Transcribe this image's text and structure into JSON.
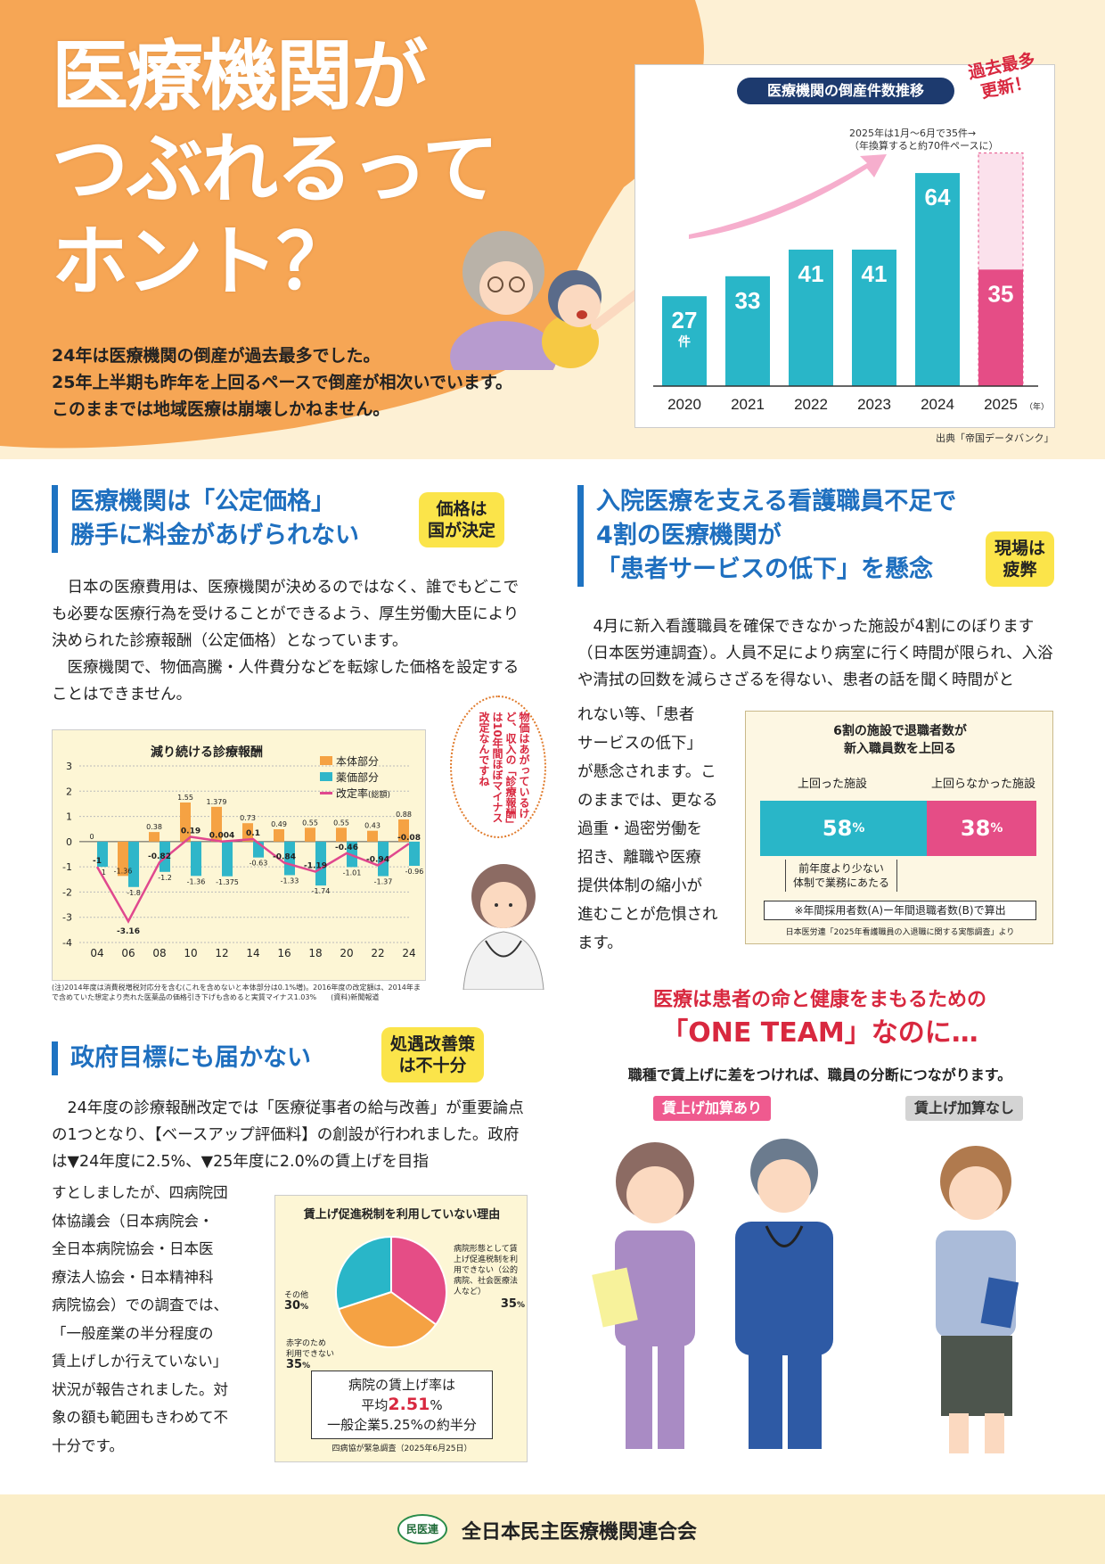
{
  "hero": {
    "title_lines": [
      "医療機関が",
      "つぶれるって",
      "ホント？"
    ],
    "lead_lines": [
      "24年は医療機関の倒産が過去最多でした。",
      "25年上半期も昨年を上回るペースで倒産が相次いでいます。",
      "このままでは地域医療は崩壊しかねません。"
    ]
  },
  "bankruptcy_chart": {
    "title": "医療機関の倒産件数推移",
    "badge_line1": "過去最多",
    "badge_line2": "更新！",
    "note_line1": "2025年は1月〜6月で35件→",
    "note_line2": "（年換算すると約70件ペースに）",
    "unit_label": "件",
    "year_suffix": "（年）",
    "source": "出典「帝国データバンク」",
    "colors": {
      "bar": "#29b6c8",
      "bar_2025": "#e54d86",
      "projection": "#fbe1ec"
    }
  },
  "chart_data": [
    {
      "type": "bar",
      "title": "医療機関の倒産件数推移",
      "categories": [
        "2020",
        "2021",
        "2022",
        "2023",
        "2024",
        "2025"
      ],
      "values": [
        27,
        33,
        41,
        41,
        64,
        35
      ],
      "projection_2025": 70,
      "ylim": [
        0,
        75
      ]
    },
    {
      "type": "bar",
      "title": "減り続ける診療報酬",
      "categories": [
        "04",
        "06",
        "08",
        "10",
        "12",
        "14",
        "16",
        "18",
        "20",
        "22",
        "24"
      ],
      "series": [
        {
          "name": "本体部分",
          "values": [
            0.0,
            -1.36,
            0.38,
            1.55,
            1.379,
            0.73,
            0.49,
            0.55,
            0.55,
            0.43,
            0.88
          ]
        },
        {
          "name": "薬価部分",
          "values": [
            -1.0,
            -1.8,
            -1.2,
            -1.36,
            -1.375,
            -0.63,
            -1.33,
            -1.74,
            -1.01,
            -1.37,
            -0.96
          ]
        },
        {
          "name": "改定率(総額)",
          "values": [
            -1.0,
            -3.16,
            -0.82,
            0.19,
            0.004,
            0.1,
            -0.84,
            -1.19,
            -0.46,
            -0.94,
            -0.08
          ]
        }
      ],
      "ylim": [
        -4,
        3
      ]
    },
    {
      "type": "pie",
      "title": "賃上げ促進税制を利用していない理由",
      "labels": [
        "病院形態として賃上げ促進税制を利用できない（公的病院、社会医療法人など）",
        "赤字のため利用できない",
        "その他"
      ],
      "values": [
        35,
        35,
        30
      ]
    }
  ],
  "sec1": {
    "heading_line1": "医療機関は「公定価格」",
    "heading_line2": "勝手に料金があげられない",
    "tag_line1": "価格は",
    "tag_line2": "国が決定",
    "para1": "日本の医療費用は、医療機関が決めるのではなく、誰でもどこでも必要な医療行為を受けることができるよう、厚生労働大臣により決められた診療報酬（公定価格）となっています。",
    "para2": "医療機関で、物価高騰・人件費分などを転嫁した価格を設定することはできません。"
  },
  "fee_chart": {
    "title": "減り続ける診療報酬",
    "legend": [
      "本体部分",
      "薬価部分",
      "改定率"
    ],
    "legend_suffix": "(総額)",
    "y_ticks": [
      "3",
      "2",
      "1",
      "0",
      "-1",
      "-2",
      "-3",
      "-4"
    ],
    "x_ticks": [
      "04",
      "06",
      "08",
      "10",
      "12",
      "14",
      "16",
      "18",
      "20",
      "22",
      "24"
    ],
    "note": "(注)2014年度は消費税増税対応分を含む(これを含めないと本体部分は0.1%増)。2016年度の改定額は、2014年まで含めていた想定より売れた医薬品の価格引き下げも含めると実質マイナス1.03%　　(資料)新聞報道",
    "colors": {
      "main": "#f5a243",
      "drug": "#2fb6c9",
      "total": "#e0488e"
    }
  },
  "speech": {
    "text": "物価はあがっているけど、収入の「診療報酬」は10年間ほぼマイナス改定なんですね"
  },
  "sec2": {
    "heading_line1": "入院医療を支える看護職員不足で",
    "heading_line2": "4割の医療機関が",
    "heading_line3": "「患者サービスの低下」を懸念",
    "tag_line1": "現場は",
    "tag_line2": "疲弊",
    "para_full": "4月に新入看護職員を確保できなかった施設が4割にのぼります（日本医労連調査）。人員不足により病室に行く時間が限られ、入浴や清拭の回数を減らさざるを得ない、患者の話を聞く時間がと",
    "para_narrow": [
      "れない等、「患者",
      "サービスの低下」",
      "が懸念されます。こ",
      "のままでは、更なる",
      "過重・過密労働を",
      "招き、離職や医療",
      "提供体制の縮小が",
      "進むことが危惧され",
      "ます。"
    ]
  },
  "nurse_chart": {
    "title_line1": "6割の施設で退職者数が",
    "title_line2": "新入職員数を上回る",
    "label_over": "上回った施設",
    "label_not": "上回らなかった施設",
    "value_over": "58",
    "value_not": "38",
    "pct": "%",
    "brace_line1": "前年度より少ない",
    "brace_line2": "体制で業務にあたる",
    "note": "※年間採用者数(A)ー年間退職者数(B)で算出",
    "source": "日本医労連「2025年看護職員の入退職に関する実態調査」より",
    "colors": {
      "over": "#29b6c8",
      "not": "#e54d86"
    }
  },
  "sec3": {
    "heading": "政府目標にも届かない",
    "tag_line1": "処遇改善策",
    "tag_line2": "は不十分",
    "para_full": "24年度の診療報酬改定では「医療従事者の給与改善」が重要論点の1つとなり、【ベースアップ評価料】の創設が行われました。政府は▼24年度に2.5%、▼25年度に2.0%の賃上げを目指",
    "para_narrow": [
      "すとしましたが、四病院団",
      "体協議会（日本病院会・",
      "全日本病院協会・日本医",
      "療法人協会・日本精神科",
      "病院協会）での調査では、",
      "「一般産業の半分程度の",
      "賃上げしか行えていない」",
      "状況が報告されました。対",
      "象の額も範囲もきわめて不",
      "十分です。"
    ]
  },
  "pie": {
    "title": "賃上げ促進税制を利用していない理由",
    "label_a": "病院形態として賃上げ促進税制を利用できない（公的病院、社会医療法人など）",
    "value_a": "35",
    "label_b_line1": "赤字のため",
    "label_b_line2": "利用できない",
    "value_b": "35",
    "label_c": "その他",
    "value_c": "30",
    "pct": "%",
    "result_line1": "病院の賃上げ率は",
    "result_line2_prefix": "平均",
    "result_line2_value": "2.51",
    "result_line2_suffix": "%",
    "result_line3": "一般企業5.25%の約半分",
    "source": "四病協が緊急調査（2025年6月25日）",
    "colors": {
      "a": "#e54d86",
      "b": "#f5a243",
      "c": "#29b6c8"
    }
  },
  "one_team": {
    "line1": "医療は患者の命と健康をまもるための",
    "line2": "「ONE TEAM」なのに…",
    "sub": "職種で賃上げに差をつければ、職員の分断につながります。",
    "chip_yes": "賃上げ加算あり",
    "chip_no": "賃上げ加算なし"
  },
  "footer": {
    "logo": "民医連",
    "org": "全日本民主医療機関連合会"
  }
}
